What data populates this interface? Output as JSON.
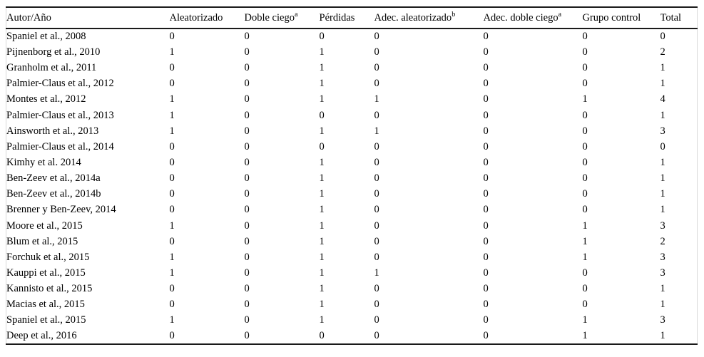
{
  "table": {
    "columns": [
      {
        "label": "Autor/Año",
        "sup": ""
      },
      {
        "label": "Aleatorizado",
        "sup": ""
      },
      {
        "label": "Doble ciego",
        "sup": "a"
      },
      {
        "label": "Pérdidas",
        "sup": ""
      },
      {
        "label": "Adec. aleatorizado",
        "sup": "b"
      },
      {
        "label": "Adec. doble ciego",
        "sup": "a"
      },
      {
        "label": "Grupo control",
        "sup": ""
      },
      {
        "label": "Total",
        "sup": ""
      }
    ],
    "rows": [
      [
        "Spaniel et al., 2008",
        "0",
        "0",
        "0",
        "0",
        "0",
        "0",
        "0"
      ],
      [
        "Pijnenborg et al., 2010",
        "1",
        "0",
        "1",
        "0",
        "0",
        "0",
        "2"
      ],
      [
        "Granholm et al., 2011",
        "0",
        "0",
        "1",
        "0",
        "0",
        "0",
        "1"
      ],
      [
        "Palmier-Claus et al., 2012",
        "0",
        "0",
        "1",
        "0",
        "0",
        "0",
        "1"
      ],
      [
        "Montes et al., 2012",
        "1",
        "0",
        "1",
        "1",
        "0",
        "1",
        "4"
      ],
      [
        "Palmier-Claus et al., 2013",
        "1",
        "0",
        "0",
        "0",
        "0",
        "0",
        "1"
      ],
      [
        "Ainsworth et al., 2013",
        "1",
        "0",
        "1",
        "1",
        "0",
        "0",
        "3"
      ],
      [
        "Palmier-Claus et al., 2014",
        "0",
        "0",
        "0",
        "0",
        "0",
        "0",
        "0"
      ],
      [
        "Kimhy et al. 2014",
        "0",
        "0",
        "1",
        "0",
        "0",
        "0",
        "1"
      ],
      [
        "Ben-Zeev et al., 2014a",
        "0",
        "0",
        "1",
        "0",
        "0",
        "0",
        "1"
      ],
      [
        "Ben-Zeev et al., 2014b",
        "0",
        "0",
        "1",
        "0",
        "0",
        "0",
        "1"
      ],
      [
        "Brenner y Ben-Zeev, 2014",
        "0",
        "0",
        "1",
        "0",
        "0",
        "0",
        "1"
      ],
      [
        "Moore et al., 2015",
        "1",
        "0",
        "1",
        "0",
        "0",
        "1",
        "3"
      ],
      [
        "Blum et al., 2015",
        "0",
        "0",
        "1",
        "0",
        "0",
        "1",
        "2"
      ],
      [
        "Forchuk et al., 2015",
        "1",
        "0",
        "1",
        "0",
        "0",
        "1",
        "3"
      ],
      [
        "Kauppi et al., 2015",
        "1",
        "0",
        "1",
        "1",
        "0",
        "0",
        "3"
      ],
      [
        "Kannisto et al., 2015",
        "0",
        "0",
        "1",
        "0",
        "0",
        "0",
        "1"
      ],
      [
        "Macias et al., 2015",
        "0",
        "0",
        "1",
        "0",
        "0",
        "0",
        "1"
      ],
      [
        "Spaniel et al., 2015",
        "1",
        "0",
        "1",
        "0",
        "0",
        "1",
        "3"
      ],
      [
        "Deep et al., 2016",
        "0",
        "0",
        "0",
        "0",
        "0",
        "1",
        "1"
      ]
    ],
    "colors": {
      "rule": "#1a1a1a",
      "side_border": "#d9d9d9",
      "text": "#000000",
      "background": "#ffffff"
    }
  }
}
